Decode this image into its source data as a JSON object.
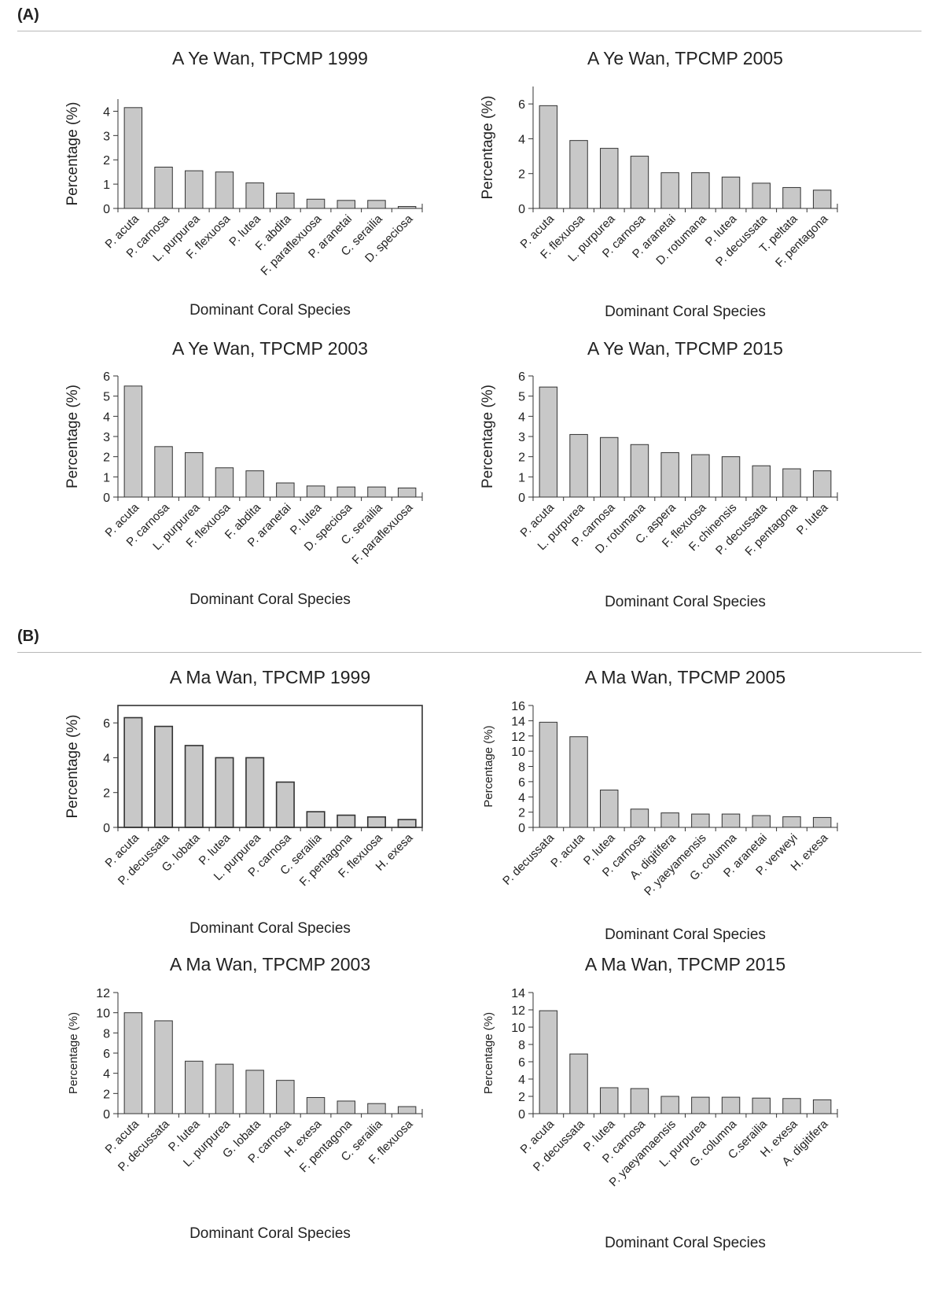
{
  "sections": [
    {
      "label": "(A)"
    },
    {
      "label": "(B)"
    }
  ],
  "style": {
    "bar_fill": "#c8c8c8",
    "bar_stroke": "#333333",
    "axis_color": "#333333"
  },
  "chart_data": [
    {
      "type": "bar",
      "title": "A Ye Wan, TPCMP 1999",
      "xlabel": "Dominant Coral Species",
      "ylabel": "Percentage (%)",
      "ylim": [
        0,
        4.5
      ],
      "yticks": [
        0,
        1,
        2,
        3,
        4
      ],
      "categories": [
        "P. acuta",
        "P. carnosa",
        "L. purpurea",
        "F. flexuosa",
        "P. lutea",
        "F. abdita",
        "F. paraflexuosa",
        "P. aranetai",
        "C. serailia",
        "D. speciosa"
      ],
      "values": [
        4.15,
        1.7,
        1.55,
        1.5,
        1.05,
        0.63,
        0.38,
        0.33,
        0.33,
        0.08
      ],
      "grid": false
    },
    {
      "type": "bar",
      "title": "A Ye Wan, TPCMP 2005",
      "xlabel": "Dominant Coral Species",
      "ylabel": "Percentage (%)",
      "ylim": [
        0,
        7
      ],
      "yticks": [
        0,
        2,
        4,
        6
      ],
      "categories": [
        "P. acuta",
        "F. flexuosa",
        "L. purpurea",
        "P. carnosa",
        "P. aranetai",
        "D. rotumana",
        "P. lutea",
        "P. decussata",
        "T. peltata",
        "F. pentagona"
      ],
      "values": [
        5.9,
        3.9,
        3.45,
        3.0,
        2.05,
        2.05,
        1.8,
        1.45,
        1.2,
        1.05
      ],
      "grid": false
    },
    {
      "type": "bar",
      "title": "A Ye Wan, TPCMP 2003",
      "xlabel": "Dominant Coral Species",
      "ylabel": "Percentage (%)",
      "ylim": [
        0,
        6
      ],
      "yticks": [
        0,
        1,
        2,
        3,
        4,
        5,
        6
      ],
      "categories": [
        "P. acuta",
        "P. carnosa",
        "L. purpurea",
        "F. flexuosa",
        "F. abdita",
        "P. aranetai",
        "P. lutea",
        "D. speciosa",
        "C. serailia",
        "F. paraflexuosa"
      ],
      "values": [
        5.5,
        2.5,
        2.2,
        1.45,
        1.3,
        0.7,
        0.55,
        0.5,
        0.5,
        0.45
      ],
      "grid": false
    },
    {
      "type": "bar",
      "title": "A Ye Wan, TPCMP 2015",
      "xlabel": "Dominant Coral Species",
      "ylabel": "Percentage (%)",
      "ylim": [
        0,
        6
      ],
      "yticks": [
        0,
        1,
        2,
        3,
        4,
        5,
        6
      ],
      "categories": [
        "P. acuta",
        "L. purpurea",
        "P. carnosa",
        "D. rotumana",
        "C. aspera",
        "F. flexuosa",
        "F. chinensis",
        "P. decussata",
        "F. pentagona",
        "P. lutea"
      ],
      "values": [
        5.45,
        3.1,
        2.95,
        2.6,
        2.2,
        2.1,
        2.0,
        1.55,
        1.4,
        1.3
      ],
      "grid": false
    },
    {
      "type": "bar",
      "title": "A Ma Wan, TPCMP 1999",
      "xlabel": "Dominant Coral Species",
      "ylabel": "Percentage (%)",
      "ylim": [
        0,
        7
      ],
      "yticks": [
        0,
        2,
        4,
        6
      ],
      "categories": [
        "P. acuta",
        "P. decussata",
        "G. lobata",
        "P. lutea",
        "L. purpurea",
        "P. carnosa",
        "C. serailia",
        "F. pentagona",
        "F. flexuosa",
        "H. exesa"
      ],
      "values": [
        6.3,
        5.8,
        4.7,
        4.0,
        4.0,
        2.6,
        0.9,
        0.7,
        0.6,
        0.45
      ],
      "grid": false,
      "frame": true
    },
    {
      "type": "bar",
      "title": "A Ma Wan, TPCMP 2005",
      "xlabel": "Dominant Coral Species",
      "ylabel": "Percentage (%)",
      "ylim": [
        0,
        16
      ],
      "yticks": [
        0,
        2,
        4,
        6,
        8,
        10,
        12,
        14,
        16
      ],
      "categories": [
        "P. decussata",
        "P. acuta",
        "P. lutea",
        "P. carnosa",
        "A. digitifera",
        "P. yaeyamensis",
        "G. columna",
        "P. aranetai",
        "P. verweyi",
        "H. exesa"
      ],
      "values": [
        13.8,
        11.9,
        4.9,
        2.4,
        1.9,
        1.75,
        1.75,
        1.55,
        1.4,
        1.3
      ],
      "grid": false
    },
    {
      "type": "bar",
      "title": "A Ma Wan, TPCMP 2003",
      "xlabel": "Dominant Coral Species",
      "ylabel": "Percentage (%)",
      "ylim": [
        0,
        12
      ],
      "yticks": [
        0,
        2,
        4,
        6,
        8,
        10,
        12
      ],
      "categories": [
        "P. acuta",
        "P. decussata",
        "P. lutea",
        "L. purpurea",
        "G. lobata",
        "P. carnosa",
        "H. exesa",
        "F. pentagona",
        "C. serailia",
        "F. flexuosa"
      ],
      "values": [
        10.0,
        9.2,
        5.2,
        4.9,
        4.3,
        3.3,
        1.6,
        1.25,
        1.0,
        0.7
      ],
      "grid": false
    },
    {
      "type": "bar",
      "title": "A Ma Wan, TPCMP 2015",
      "xlabel": "Dominant Coral Species",
      "ylabel": "Percentage (%)",
      "ylim": [
        0,
        14
      ],
      "yticks": [
        0,
        2,
        4,
        6,
        8,
        10,
        12,
        14
      ],
      "categories": [
        "P. acuta",
        "P. decussata",
        "P. lutea",
        "P. carnosa",
        "P. yaeyamaensis",
        "L. purpurea",
        "G. columna",
        "C.serailia",
        "H. exesa",
        "A. digitifera"
      ],
      "values": [
        11.9,
        6.9,
        3.0,
        2.9,
        2.0,
        1.9,
        1.9,
        1.8,
        1.75,
        1.6
      ],
      "grid": false
    }
  ]
}
